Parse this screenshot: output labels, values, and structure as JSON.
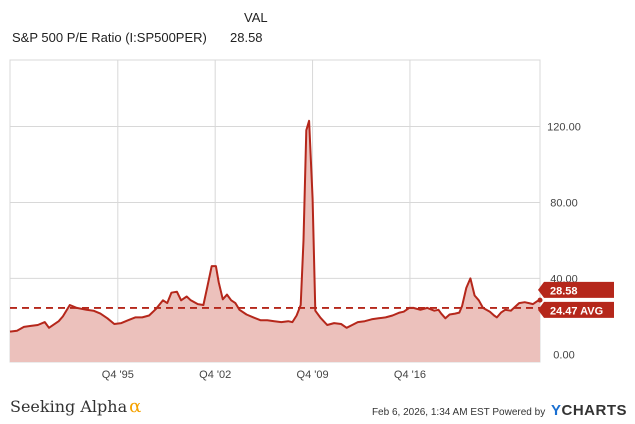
{
  "legend": {
    "column_header": "VAL",
    "series_name": "S&P 500 P/E Ratio (I:SP500PER)",
    "series_value": "28.58"
  },
  "footer": {
    "brand_text": "Seeking Alpha",
    "brand_symbol": "α",
    "timestamp": "Feb 6, 2026, 1:34 AM EST",
    "powered_by": "Powered by",
    "provider_first": "Y",
    "provider_rest": "CHARTS"
  },
  "colors": {
    "line": "#b5271b",
    "fill": "#ecc1bc",
    "avg_line": "#b5271b",
    "badge": "#b5271b",
    "grid": "#d8d8d8"
  },
  "chart_data": {
    "type": "area",
    "series": [
      {
        "name": "S&P 500 P/E Ratio (I:SP500PER)",
        "points": [
          [
            1988.0,
            12.0
          ],
          [
            1988.5,
            12.5
          ],
          [
            1989.0,
            14.5
          ],
          [
            1989.5,
            15.0
          ],
          [
            1990.0,
            15.5
          ],
          [
            1990.5,
            17.0
          ],
          [
            1990.8,
            14.0
          ],
          [
            1991.5,
            17.5
          ],
          [
            1991.8,
            20.0
          ],
          [
            1992.3,
            26.0
          ],
          [
            1992.8,
            24.5
          ],
          [
            1993.5,
            23.5
          ],
          [
            1994.0,
            23.0
          ],
          [
            1994.5,
            21.5
          ],
          [
            1995.0,
            19.0
          ],
          [
            1995.5,
            16.0
          ],
          [
            1996.0,
            16.5
          ],
          [
            1996.5,
            18.0
          ],
          [
            1997.0,
            19.5
          ],
          [
            1997.5,
            19.5
          ],
          [
            1998.0,
            20.5
          ],
          [
            1998.5,
            24.0
          ],
          [
            1999.0,
            28.5
          ],
          [
            1999.3,
            27.0
          ],
          [
            1999.6,
            32.5
          ],
          [
            2000.0,
            33.0
          ],
          [
            2000.3,
            28.5
          ],
          [
            2000.7,
            30.5
          ],
          [
            2001.0,
            28.5
          ],
          [
            2001.5,
            26.5
          ],
          [
            2001.9,
            26.0
          ],
          [
            2002.2,
            36.0
          ],
          [
            2002.5,
            46.5
          ],
          [
            2002.8,
            46.5
          ],
          [
            2003.0,
            38.0
          ],
          [
            2003.3,
            29.0
          ],
          [
            2003.6,
            31.5
          ],
          [
            2003.9,
            28.5
          ],
          [
            2004.2,
            27.0
          ],
          [
            2004.5,
            23.5
          ],
          [
            2005.0,
            21.0
          ],
          [
            2005.5,
            19.5
          ],
          [
            2006.0,
            18.0
          ],
          [
            2006.5,
            18.0
          ],
          [
            2007.0,
            17.5
          ],
          [
            2007.5,
            17.0
          ],
          [
            2008.0,
            17.5
          ],
          [
            2008.3,
            17.0
          ],
          [
            2008.6,
            20.5
          ],
          [
            2008.9,
            26.0
          ],
          [
            2009.1,
            60.0
          ],
          [
            2009.3,
            118.0
          ],
          [
            2009.5,
            123.0
          ],
          [
            2009.75,
            82.0
          ],
          [
            2009.95,
            23.0
          ],
          [
            2010.3,
            19.5
          ],
          [
            2010.8,
            15.5
          ],
          [
            2011.3,
            16.5
          ],
          [
            2011.8,
            16.0
          ],
          [
            2012.2,
            14.0
          ],
          [
            2012.6,
            15.5
          ],
          [
            2013.0,
            17.0
          ],
          [
            2013.5,
            17.5
          ],
          [
            2014.0,
            18.5
          ],
          [
            2014.5,
            19.0
          ],
          [
            2015.0,
            19.5
          ],
          [
            2015.5,
            20.5
          ],
          [
            2016.0,
            22.0
          ],
          [
            2016.3,
            22.5
          ],
          [
            2016.7,
            24.5
          ],
          [
            2017.0,
            24.5
          ],
          [
            2017.5,
            23.5
          ],
          [
            2018.0,
            24.5
          ],
          [
            2018.5,
            23.0
          ],
          [
            2018.8,
            23.5
          ],
          [
            2019.0,
            21.5
          ],
          [
            2019.3,
            19.0
          ],
          [
            2019.6,
            21.0
          ],
          [
            2020.0,
            21.5
          ],
          [
            2020.3,
            22.0
          ],
          [
            2020.5,
            25.5
          ],
          [
            2020.8,
            35.0
          ],
          [
            2021.1,
            40.0
          ],
          [
            2021.4,
            31.0
          ],
          [
            2021.7,
            28.5
          ],
          [
            2022.0,
            24.5
          ],
          [
            2022.5,
            22.5
          ],
          [
            2022.8,
            20.5
          ],
          [
            2023.0,
            19.5
          ],
          [
            2023.3,
            22.0
          ],
          [
            2023.6,
            23.5
          ],
          [
            2024.0,
            23.0
          ],
          [
            2024.3,
            25.0
          ],
          [
            2024.6,
            27.0
          ],
          [
            2025.0,
            27.5
          ],
          [
            2025.3,
            27.0
          ],
          [
            2025.6,
            26.5
          ],
          [
            2025.9,
            28.0
          ],
          [
            2026.1,
            28.58
          ]
        ]
      }
    ],
    "average": 24.47,
    "labels": {
      "last_value": "28.58",
      "average": "24.47 AVG"
    },
    "x_ticks": [
      {
        "value": 1995.75,
        "label": "Q4 '95"
      },
      {
        "value": 2002.75,
        "label": "Q4 '02"
      },
      {
        "value": 2009.75,
        "label": "Q4 '09"
      },
      {
        "value": 2016.75,
        "label": "Q4 '16"
      }
    ],
    "y_ticks": [
      {
        "value": 0,
        "label": "0.00"
      },
      {
        "value": 40,
        "label": "40.00"
      },
      {
        "value": 80,
        "label": "80.00"
      },
      {
        "value": 120,
        "label": "120.00"
      }
    ],
    "xlim": [
      1988.0,
      2026.1
    ],
    "ylim": [
      -4,
      155
    ],
    "grid": true
  }
}
